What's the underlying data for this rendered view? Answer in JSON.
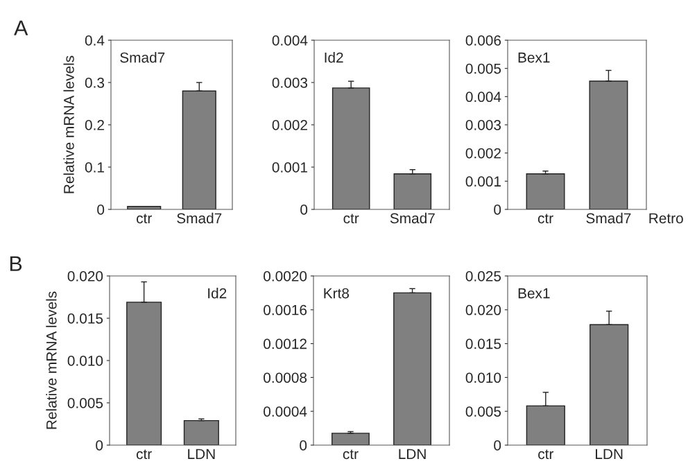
{
  "chart_data": [
    {
      "type": "bar",
      "title": "Smad7",
      "ylabel": "Relative mRNA levels",
      "annotations": [
        "A"
      ],
      "categories": [
        "ctr",
        "Smad7"
      ],
      "values": [
        0.007,
        0.28
      ],
      "errors": [
        null,
        0.02
      ],
      "color": "#808080",
      "ylim": [
        0,
        0.4
      ],
      "yticks": [
        0,
        0.1,
        0.2,
        0.3,
        0.4
      ]
    },
    {
      "type": "bar",
      "title": "Id2",
      "categories": [
        "ctr",
        "Smad7"
      ],
      "values": [
        0.00287,
        0.00084
      ],
      "errors": [
        0.00016,
        0.0001
      ],
      "color": "#808080",
      "ylim": [
        0,
        0.004
      ],
      "yticks": [
        0,
        0.001,
        0.002,
        0.003,
        0.004
      ]
    },
    {
      "type": "bar",
      "title": "Bex1",
      "annotations": [
        "Retro"
      ],
      "categories": [
        "ctr",
        "Smad7"
      ],
      "values": [
        0.00126,
        0.00455
      ],
      "errors": [
        0.0001,
        0.00038
      ],
      "color": "#808080",
      "ylim": [
        0,
        0.006
      ],
      "yticks": [
        0,
        0.001,
        0.002,
        0.003,
        0.004,
        0.005,
        0.006
      ]
    },
    {
      "type": "bar",
      "title": "Id2",
      "ylabel": "Relative mRNA levels",
      "annotations": [
        "B"
      ],
      "categories": [
        "ctr",
        "LDN"
      ],
      "values": [
        0.0169,
        0.0029
      ],
      "errors": [
        0.0024,
        0.0002
      ],
      "color": "#808080",
      "ylim": [
        0,
        0.02
      ],
      "yticks": [
        0,
        {
          "value": 0.005,
          "label": "0.005"
        },
        {
          "value": 0.01,
          "label": "0.010"
        },
        {
          "value": 0.015,
          "label": "0.015"
        },
        {
          "value": 0.02,
          "label": "0.020"
        }
      ]
    },
    {
      "type": "bar",
      "title": "Krt8",
      "categories": [
        "ctr",
        "LDN"
      ],
      "values": [
        0.00014,
        0.0018
      ],
      "errors": [
        2e-05,
        5e-05
      ],
      "color": "#808080",
      "ylim": [
        0,
        0.002
      ],
      "yticks": [
        0,
        0.0004,
        0.0008,
        0.0012,
        0.0016,
        {
          "value": 0.002,
          "label": "0.0020"
        }
      ]
    },
    {
      "type": "bar",
      "title": "Bex1",
      "categories": [
        "ctr",
        "LDN"
      ],
      "values": [
        0.0058,
        0.0178
      ],
      "errors": [
        0.002,
        0.002
      ],
      "color": "#808080",
      "ylim": [
        0,
        0.025
      ],
      "yticks": [
        0,
        0.005,
        {
          "value": 0.01,
          "label": "0.010"
        },
        0.015,
        {
          "value": 0.02,
          "label": "0.020"
        },
        0.025
      ]
    }
  ]
}
